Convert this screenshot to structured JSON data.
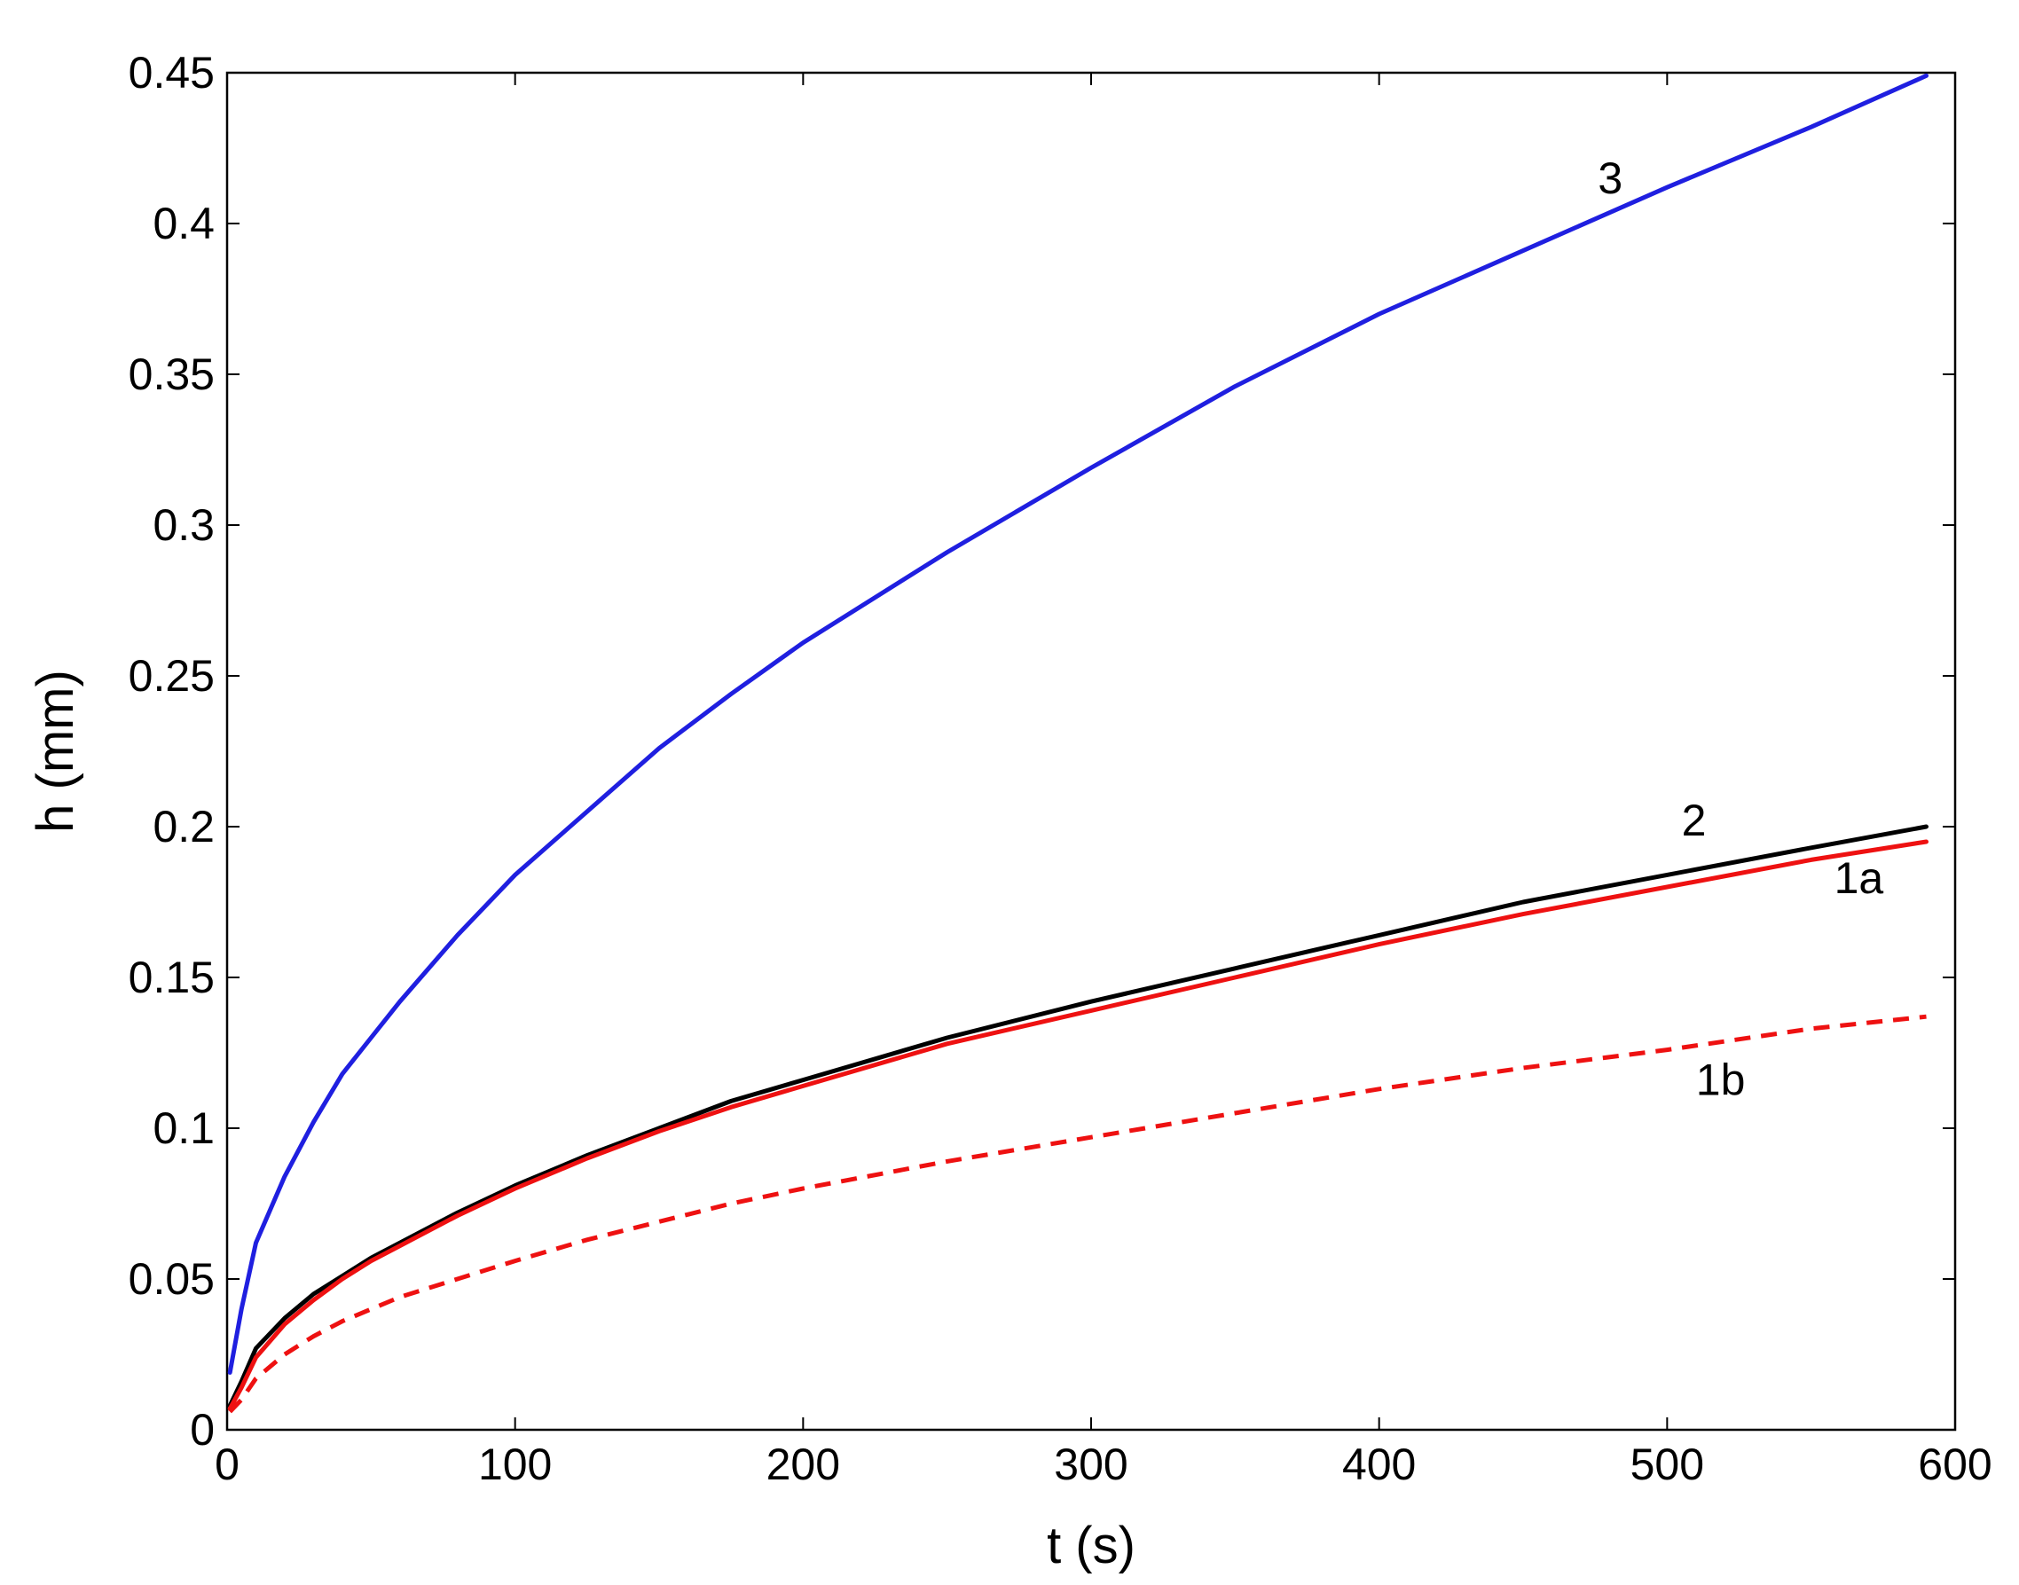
{
  "chart_data": {
    "type": "line",
    "title": "",
    "xlabel": "t (s)",
    "ylabel": "h (mm)",
    "xlim": [
      0,
      600
    ],
    "ylim": [
      0,
      0.45
    ],
    "xticks": [
      0,
      100,
      200,
      300,
      400,
      500,
      600
    ],
    "yticks": [
      0,
      0.05,
      0.1,
      0.15,
      0.2,
      0.25,
      0.3,
      0.35,
      0.4,
      0.45
    ],
    "xtick_labels": [
      "0",
      "100",
      "200",
      "300",
      "400",
      "500",
      "600"
    ],
    "ytick_labels": [
      "0",
      "0.05",
      "0.1",
      "0.15",
      "0.2",
      "0.25",
      "0.3",
      "0.35",
      "0.4",
      "0.45"
    ],
    "grid": false,
    "legend": "none",
    "series": [
      {
        "id": "curve-3",
        "label": "3",
        "label_at": [
          476,
          0.41
        ],
        "color": "#1f1fe0",
        "dash": "solid",
        "x": [
          1,
          5,
          10,
          20,
          30,
          40,
          50,
          60,
          80,
          100,
          125,
          150,
          175,
          200,
          250,
          300,
          350,
          400,
          450,
          500,
          550,
          590
        ],
        "y": [
          0.019,
          0.04,
          0.062,
          0.084,
          0.102,
          0.118,
          0.13,
          0.142,
          0.164,
          0.184,
          0.205,
          0.226,
          0.244,
          0.261,
          0.291,
          0.319,
          0.346,
          0.37,
          0.391,
          0.412,
          0.432,
          0.449
        ]
      },
      {
        "id": "curve-2",
        "label": "2",
        "label_at": [
          505,
          0.197
        ],
        "color": "#000000",
        "dash": "solid",
        "x": [
          1,
          5,
          10,
          20,
          30,
          40,
          50,
          60,
          80,
          100,
          125,
          150,
          175,
          200,
          250,
          300,
          350,
          400,
          450,
          500,
          550,
          590
        ],
        "y": [
          0.008,
          0.016,
          0.027,
          0.037,
          0.045,
          0.051,
          0.057,
          0.062,
          0.072,
          0.081,
          0.091,
          0.1,
          0.109,
          0.116,
          0.13,
          0.142,
          0.153,
          0.164,
          0.175,
          0.184,
          0.193,
          0.2
        ]
      },
      {
        "id": "curve-1a",
        "label": "1a",
        "label_at": [
          558,
          0.178
        ],
        "color": "#ee1111",
        "dash": "solid",
        "x": [
          1,
          5,
          10,
          20,
          30,
          40,
          50,
          60,
          80,
          100,
          125,
          150,
          175,
          200,
          250,
          300,
          350,
          400,
          450,
          500,
          550,
          590
        ],
        "y": [
          0.007,
          0.014,
          0.024,
          0.035,
          0.043,
          0.05,
          0.056,
          0.061,
          0.071,
          0.08,
          0.09,
          0.099,
          0.107,
          0.114,
          0.128,
          0.139,
          0.15,
          0.161,
          0.171,
          0.18,
          0.189,
          0.195
        ]
      },
      {
        "id": "curve-1b",
        "label": "1b",
        "label_at": [
          510,
          0.111
        ],
        "color": "#ee1111",
        "dash": "dashed",
        "x": [
          1,
          5,
          10,
          20,
          30,
          40,
          50,
          60,
          80,
          100,
          125,
          150,
          175,
          200,
          250,
          300,
          350,
          400,
          450,
          500,
          550,
          590
        ],
        "y": [
          0.006,
          0.01,
          0.017,
          0.025,
          0.031,
          0.036,
          0.04,
          0.044,
          0.05,
          0.056,
          0.063,
          0.069,
          0.075,
          0.08,
          0.089,
          0.097,
          0.105,
          0.113,
          0.12,
          0.126,
          0.133,
          0.137
        ]
      }
    ]
  }
}
